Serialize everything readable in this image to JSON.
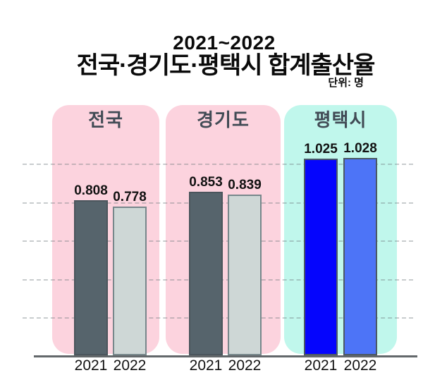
{
  "header": {
    "title_line1": "2021~2022",
    "title_line2": "전국·경기도·평택시 합계출산율",
    "unit": "단위: 명"
  },
  "chart_data": {
    "type": "bar",
    "title": "2021~2022 전국·경기도·평택시 합계출산율",
    "unit_label": "단위: 명",
    "categories": [
      "전국",
      "경기도",
      "평택시"
    ],
    "x_tick_labels": [
      "2021",
      "2022"
    ],
    "series": [
      {
        "name": "2021",
        "values": [
          0.808,
          0.853,
          1.025
        ],
        "labels": [
          "0.808",
          "0.853",
          "1.025"
        ]
      },
      {
        "name": "2022",
        "values": [
          0.778,
          0.839,
          1.028
        ],
        "labels": [
          "0.778",
          "0.839",
          "1.028"
        ]
      }
    ],
    "ylim": [
      0,
      1.3
    ],
    "gridline_values": [
      0.2,
      0.4,
      0.6,
      0.8,
      1.0
    ],
    "grid_style": "dashed",
    "legend": "none"
  },
  "panels": [
    {
      "label": "전국",
      "name": "panel-national",
      "bg": "#FCD3DE",
      "bars": [
        {
          "fill": "#56646C",
          "border": "#4A555C",
          "name": "bar-national-2021"
        },
        {
          "fill": "#CED7D6",
          "border": "#77878B",
          "name": "bar-national-2022"
        }
      ]
    },
    {
      "label": "경기도",
      "name": "panel-gyeonggi",
      "bg": "#FCD3DE",
      "bars": [
        {
          "fill": "#56646C",
          "border": "#4A555C",
          "name": "bar-gyeonggi-2021"
        },
        {
          "fill": "#CED7D6",
          "border": "#77878B",
          "name": "bar-gyeonggi-2022"
        }
      ]
    },
    {
      "label": "평택시",
      "name": "panel-pyeongtaek",
      "bg": "#C0F7EC",
      "bars": [
        {
          "fill": "#0505FD",
          "border": "#4C5964",
          "name": "bar-pyeongtaek-2021"
        },
        {
          "fill": "#4D74F7",
          "border": "#4C5964",
          "name": "bar-pyeongtaek-2022"
        }
      ]
    }
  ],
  "colors": {
    "background": "#FFFFFF",
    "panel_pink": "#FCD3DE",
    "panel_mint": "#C0F7EC",
    "bar_dark_gray": "#56646C",
    "bar_light_gray": "#CED7D6",
    "bar_blue": "#0505FD",
    "bar_royal_blue": "#4D74F7",
    "panel_header_text": "#414B55",
    "axis_line": "#63686B",
    "text": "#0A0A0A"
  }
}
